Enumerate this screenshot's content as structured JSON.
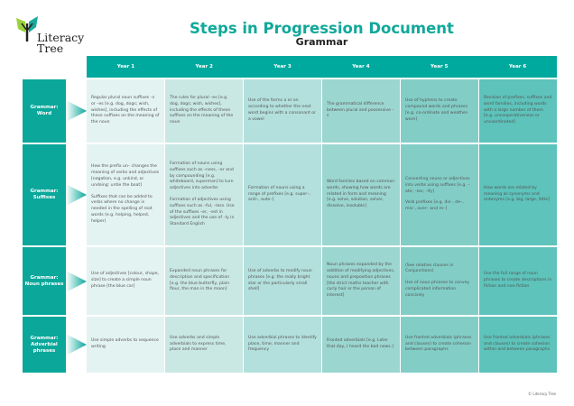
{
  "logo": {
    "line1": "Literacy",
    "line2": "Tree"
  },
  "title": "Steps in Progression Document",
  "subtitle": "Grammar",
  "years": [
    "Year 1",
    "Year 2",
    "Year 3",
    "Year 4",
    "Year 5",
    "Year 6"
  ],
  "rows": [
    {
      "label": "Grammar: Word",
      "cells": [
        [
          "Regular plural noun suffixes –s or –es [e.g. dog, dogs; wish, wishes], including the effects of these suffixes on the meaning of the noun"
        ],
        [
          "The rules for plural –es [e.g. dog, dogs; wish, wishes], including the effects of these suffixes on the meaning of the noun"
        ],
        [
          "Use of the forms a or an according to whether the next word begins with a consonant or a vowel"
        ],
        [
          "The grammatical difference between plural and possessive –s"
        ],
        [
          "Use of hyphens to create compound words and phrases [e.g. co-ordinate and weather-worn]"
        ],
        [
          "Revision of prefixes, suffixes and word families, including words with a large number of them [e.g. uncooperativeness or uncoordinated]"
        ]
      ]
    },
    {
      "label": "Grammar: Suffixes",
      "cells": [
        [
          "How the prefix un– changes the meaning of verbs and adjectives [negation, e.g. unkind, or undoing: untie the boat]",
          "Suffixes that can be added to verbs where no change is needed in the spelling of root words (e.g. helping, helped, helper)"
        ],
        [
          "Formation of nouns using suffixes such as –ness, –er and by compounding [e.g. whiteboard, superman] to turn adjectives into adverbs",
          "Formation of adjectives using suffixes such as –ful, –less. Use of the suffixes –er, –est in adjectives and the use of –ly in Standard English"
        ],
        [
          "Formation of nouns using a range of prefixes [e.g. super–, anti–, auto–]"
        ],
        [
          "Word families based on common words, showing how words are related in form and meaning [e.g. solve, solution, solver, dissolve, insoluble]"
        ],
        [
          "Converting nouns or adjectives into verbs using suffixes [e.g. –ate; –ise; –ify]",
          "Verb prefixes [e.g. dis–, de–, mis–, over– and re–]"
        ],
        [
          "How words are related by meaning as synonyms and antonyms [e.g. big, large, little]"
        ]
      ]
    },
    {
      "label": "Grammar: Noun phrases",
      "cells": [
        [
          "Use of adjectives [colour, shape, size] to create a simple noun phrase [the blue car]"
        ],
        [
          "Expanded noun phrases for description and specification [e.g. the blue butterfly, plain flour, the man in the moon]"
        ],
        [
          "Use of adverbs to modify noun phrases [e.g. the really bright star or the particularly small shell]"
        ],
        [
          "Noun phrases expanded by the addition of modifying adjectives, nouns and preposition phrases [the strict maths teacher with curly hair or the person of interest]"
        ],
        [
          "(See relative clauses in Conjunctions)",
          "Use of noun phrases to convey complicated information concisely"
        ],
        [
          "Use the full range of noun phrases to create descriptions in fiction and non-fiction"
        ]
      ]
    },
    {
      "label": "Grammar: Adverbial phrases",
      "cells": [
        [
          "Use simple adverbs to sequence writing"
        ],
        [
          "Use adverbs and simple adverbials to express time, place and manner"
        ],
        [
          "Use adverbial phrases to identify place, time, manner and frequency"
        ],
        [
          "Fronted adverbials [e.g. Later that day, I heard the bad news.]"
        ],
        [
          "Use fronted adverbials (phrases and clauses) to create cohesion between paragraphs"
        ],
        [
          "Use fronted adverbials (phrases and clauses) to create cohesion within and between paragraphs"
        ]
      ]
    }
  ],
  "copyright": "© Literacy Tree",
  "colors": {
    "accent": "#00a99d",
    "label": "#0aa79a"
  }
}
